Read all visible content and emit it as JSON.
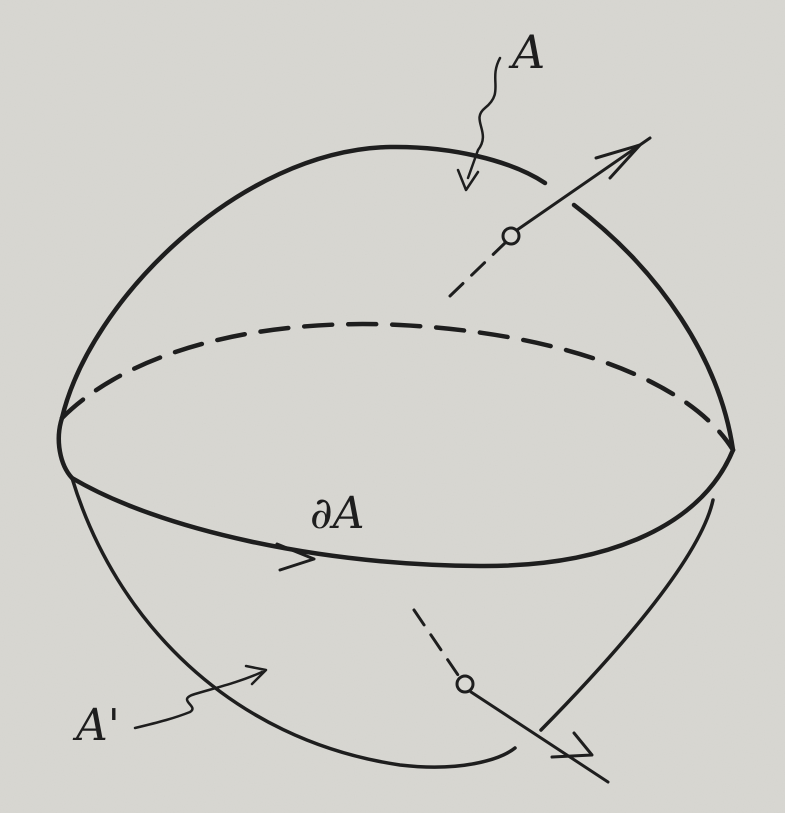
{
  "labels": {
    "upper_surface": "A",
    "boundary": "∂A",
    "lower_surface": "A'"
  },
  "colors": {
    "ink": "#1e1e1e",
    "paper": "#d9d8d3"
  }
}
